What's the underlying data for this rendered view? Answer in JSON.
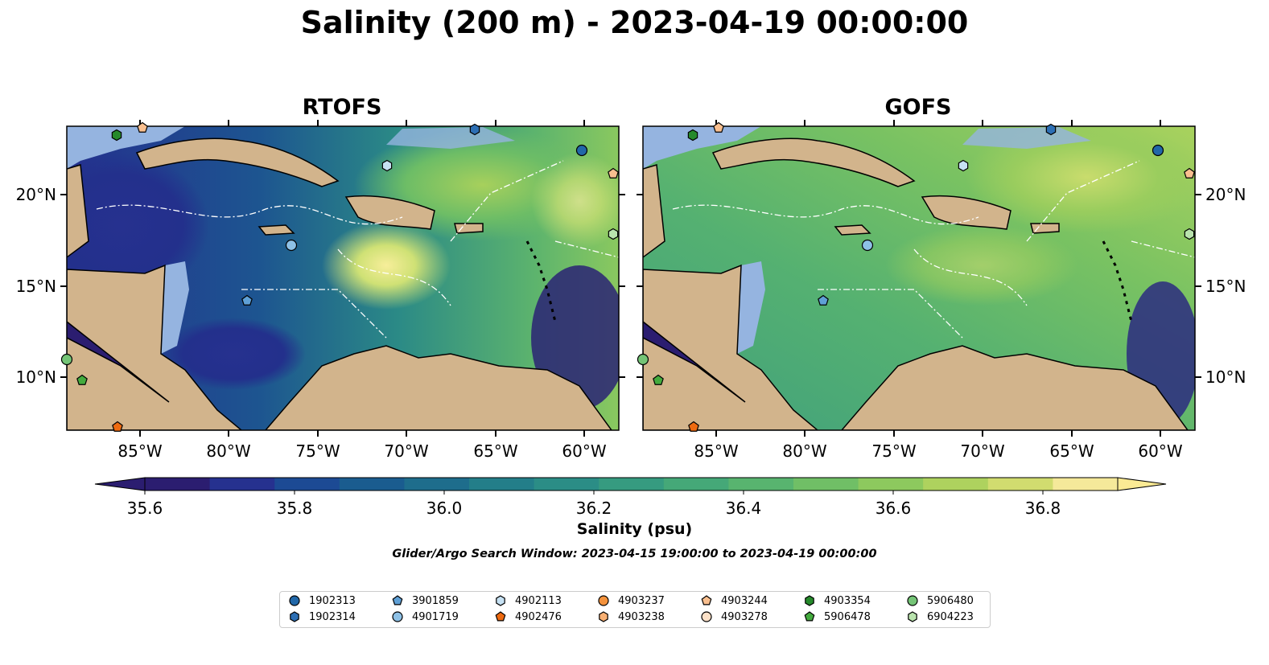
{
  "title": "Salinity (200 m) - 2023-04-19 00:00:00",
  "panels": [
    {
      "title": "RTOFS"
    },
    {
      "title": "GOFS"
    }
  ],
  "axes": {
    "lon_ticks": [
      "85°W",
      "80°W",
      "75°W",
      "70°W",
      "65°W",
      "60°W"
    ],
    "lat_ticks": [
      "20°N",
      "15°N",
      "10°N"
    ]
  },
  "colorbar": {
    "label": "Salinity (psu)",
    "ticks": [
      "35.6",
      "35.8",
      "36.0",
      "36.2",
      "36.4",
      "36.6",
      "36.8"
    ],
    "colors": [
      "#2b1d70",
      "#26318f",
      "#1c4a94",
      "#1a5c8f",
      "#1e6d8c",
      "#237e89",
      "#2b8d86",
      "#369b80",
      "#45a878",
      "#58b46f",
      "#70bf66",
      "#8dc95e",
      "#aed25e",
      "#d1dc6f",
      "#f5e99a"
    ],
    "extend_low": "#2b1d70",
    "extend_high": "#fbea94"
  },
  "search_window": "Glider/Argo Search Window: 2023-04-15 19:00:00 to 2023-04-19 00:00:00",
  "legend": [
    {
      "id": "1902313",
      "shape": "circle",
      "color": "#2167a8"
    },
    {
      "id": "1902314",
      "shape": "hexagon",
      "color": "#2d6fb4"
    },
    {
      "id": "3901859",
      "shape": "pentagon",
      "color": "#5fa0d6"
    },
    {
      "id": "4901719",
      "shape": "circle",
      "color": "#8ec1e6"
    },
    {
      "id": "4902113",
      "shape": "hexagon",
      "color": "#c6e1f3"
    },
    {
      "id": "4902476",
      "shape": "pentagon",
      "color": "#ee6a10"
    },
    {
      "id": "4903237",
      "shape": "circle",
      "color": "#f4923c"
    },
    {
      "id": "4903238",
      "shape": "hexagon",
      "color": "#f8b073"
    },
    {
      "id": "4903244",
      "shape": "pentagon",
      "color": "#f9bf8f"
    },
    {
      "id": "4903278",
      "shape": "circle",
      "color": "#fde1c8"
    },
    {
      "id": "4903354",
      "shape": "hexagon",
      "color": "#268a2b"
    },
    {
      "id": "5906478",
      "shape": "pentagon",
      "color": "#44ab3e"
    },
    {
      "id": "5906480",
      "shape": "circle",
      "color": "#74c476"
    },
    {
      "id": "6904223",
      "shape": "hexagon",
      "color": "#b9e3ad"
    }
  ],
  "colors": {
    "land": "#d2b48c",
    "shelf": "#95b4e0",
    "deep": "#2b1d70"
  }
}
